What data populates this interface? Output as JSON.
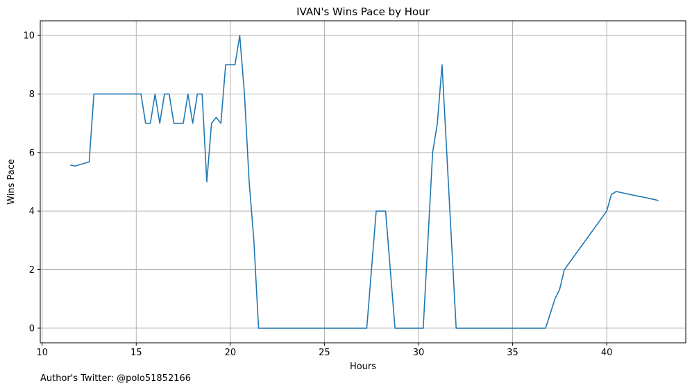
{
  "chart_data": {
    "type": "line",
    "title": "IVAN's Wins Pace by Hour",
    "xlabel": "Hours",
    "ylabel": "Wins Pace",
    "xlim": [
      9.9,
      44.2
    ],
    "ylim": [
      -0.5,
      10.5
    ],
    "xticks": [
      10,
      15,
      20,
      25,
      30,
      35,
      40
    ],
    "yticks": [
      0,
      2,
      4,
      6,
      8,
      10
    ],
    "grid": true,
    "line_color": "#1f77b4",
    "series": [
      {
        "x": [
          11.5,
          11.75,
          12.5,
          12.75,
          13.0,
          13.25,
          13.5,
          13.75,
          14.0,
          14.25,
          14.5,
          14.75,
          15.0,
          15.25,
          15.5,
          15.75,
          16.0,
          16.25,
          16.5,
          16.75,
          17.0,
          17.25,
          17.5,
          17.75,
          18.0,
          18.25,
          18.5,
          18.75,
          19.0,
          19.25,
          19.5,
          19.75,
          20.0,
          20.25,
          20.5,
          20.75,
          21.0,
          21.25,
          21.5,
          21.75,
          22.0,
          22.5,
          23.0,
          23.5,
          24.0,
          24.5,
          25.0,
          25.5,
          26.0,
          26.5,
          27.0,
          27.25,
          27.5,
          27.75,
          28.0,
          28.25,
          28.5,
          28.75,
          29.0,
          29.5,
          30.0,
          30.25,
          30.5,
          30.75,
          31.0,
          31.25,
          31.5,
          31.75,
          32.0,
          32.25,
          32.5,
          33.0,
          34.0,
          35.0,
          36.0,
          36.75,
          37.0,
          37.25,
          37.5,
          37.75,
          38.0,
          39.0,
          40.0,
          40.25,
          40.5,
          41.0,
          41.5,
          42.0,
          42.5,
          42.75
        ],
        "y": [
          5.57,
          5.54,
          5.68,
          8.0,
          8.0,
          8.0,
          8.0,
          8.0,
          8.0,
          8.0,
          8.0,
          8.0,
          8.0,
          8.0,
          7.0,
          7.0,
          8.0,
          7.0,
          8.0,
          8.0,
          7.0,
          7.0,
          7.0,
          8.0,
          7.0,
          8.0,
          8.0,
          5.0,
          7.0,
          7.2,
          7.0,
          9.0,
          9.0,
          9.0,
          10.0,
          8.0,
          5.0,
          3.0,
          0.0,
          0.0,
          0.0,
          0.0,
          0.0,
          0.0,
          0.0,
          0.0,
          0.0,
          0.0,
          0.0,
          0.0,
          0.0,
          0.0,
          2.0,
          4.0,
          4.0,
          4.0,
          2.0,
          0.0,
          0.0,
          0.0,
          0.0,
          0.0,
          3.0,
          6.0,
          7.0,
          9.0,
          6.0,
          3.0,
          0.0,
          0.0,
          0.0,
          0.0,
          0.0,
          0.0,
          0.0,
          0.0,
          0.5,
          1.0,
          1.33,
          2.0,
          2.22,
          3.11,
          4.0,
          4.57,
          4.67,
          4.6,
          4.53,
          4.47,
          4.4,
          4.36
        ]
      }
    ]
  },
  "footer": {
    "credit": "Author's Twitter: @polo51852166"
  }
}
